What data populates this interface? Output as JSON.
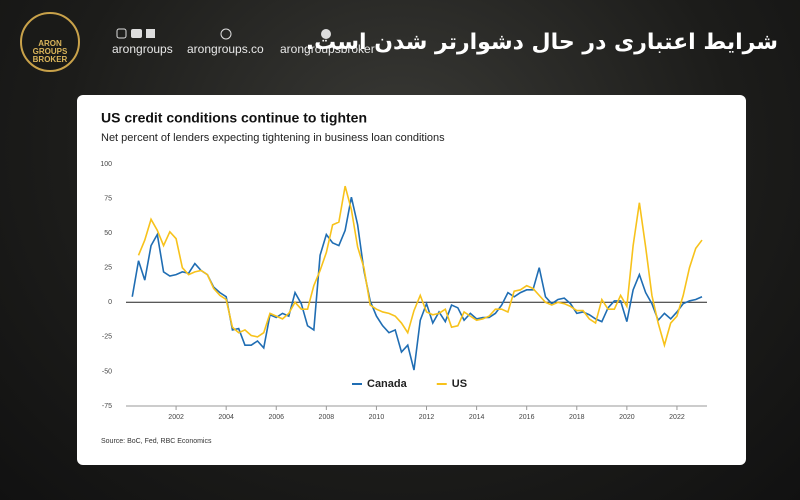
{
  "header": {
    "logo": "ARON GROUPS BROKER",
    "social": [
      "arongroups",
      "arongroups.co",
      "arongroupsbroker"
    ],
    "title": "شرایط اعتباری در حال دشوارتر شدن است."
  },
  "chart_data": {
    "type": "line",
    "title": "US credit conditions continue to tighten",
    "subtitle": "Net percent of lenders expecting tightening in business loan conditions",
    "source": "Source: BoC, Fed, RBC Economics",
    "x": [
      2000.25,
      2000.5,
      2000.75,
      2001,
      2001.25,
      2001.5,
      2001.75,
      2002,
      2002.25,
      2002.5,
      2002.75,
      2003,
      2003.25,
      2003.5,
      2003.75,
      2004,
      2004.25,
      2004.5,
      2004.75,
      2005,
      2005.25,
      2005.5,
      2005.75,
      2006,
      2006.25,
      2006.5,
      2006.75,
      2007,
      2007.25,
      2007.5,
      2007.75,
      2008,
      2008.25,
      2008.5,
      2008.75,
      2009,
      2009.25,
      2009.5,
      2009.75,
      2010,
      2010.25,
      2010.5,
      2010.75,
      2011,
      2011.25,
      2011.5,
      2011.75,
      2012,
      2012.25,
      2012.5,
      2012.75,
      2013,
      2013.25,
      2013.5,
      2013.75,
      2014,
      2014.25,
      2014.5,
      2014.75,
      2015,
      2015.25,
      2015.5,
      2015.75,
      2016,
      2016.25,
      2016.5,
      2016.75,
      2017,
      2017.25,
      2017.5,
      2017.75,
      2018,
      2018.25,
      2018.5,
      2018.75,
      2019,
      2019.25,
      2019.5,
      2019.75,
      2020,
      2020.25,
      2020.5,
      2020.75,
      2021,
      2021.25,
      2021.5,
      2021.75,
      2022,
      2022.25,
      2022.5,
      2022.75,
      2023
    ],
    "series": [
      {
        "name": "Canada",
        "color": "#1f6db3",
        "values": [
          4,
          30,
          16,
          41,
          49,
          22,
          19,
          20,
          22,
          21,
          28,
          23,
          20,
          11,
          7,
          4,
          -20,
          -19,
          -31,
          -31,
          -28,
          -33,
          -9,
          -11,
          -8,
          -10,
          7,
          -1,
          -17,
          -20,
          34,
          49,
          43,
          41,
          52,
          76,
          56,
          23,
          1,
          -10,
          -17,
          -22,
          -20,
          -36,
          -31,
          -49,
          -13,
          -1,
          -15,
          -7,
          -14,
          -2,
          -4,
          -13,
          -8,
          -12,
          -11,
          -11,
          -8,
          -2,
          7,
          4,
          7,
          9,
          9,
          25,
          4,
          -1,
          2,
          3,
          -1,
          -8,
          -7,
          -9,
          -12,
          -14,
          -4,
          1,
          1,
          -14,
          9,
          20,
          7,
          -1,
          -13,
          -8,
          -12,
          -7,
          -1,
          1,
          2,
          4
        ]
      },
      {
        "name": "US",
        "color": "#f7c21b",
        "values": [
          null,
          34,
          45,
          60,
          52,
          41,
          51,
          46,
          25,
          20,
          22,
          23,
          20,
          10,
          5,
          2,
          -18,
          -22,
          -20,
          -24,
          -25,
          -22,
          -8,
          -10,
          -12,
          -8,
          0,
          -5,
          -5,
          12,
          23,
          36,
          56,
          58,
          84,
          67,
          40,
          25,
          -2,
          -5,
          -7,
          -8,
          -10,
          -15,
          -22,
          -6,
          5,
          -7,
          -9,
          -8,
          -5,
          -18,
          -17,
          -7,
          -10,
          -13,
          -12,
          -10,
          -5,
          -5,
          -7,
          8,
          9,
          12,
          10,
          5,
          0,
          -2,
          0,
          -1,
          -3,
          -6,
          -6,
          -12,
          -15,
          2,
          -5,
          -5,
          5,
          -3,
          41,
          72,
          40,
          5,
          -15,
          -31,
          -15,
          -10,
          5,
          25,
          39,
          45
        ]
      }
    ],
    "xlim": [
      2000,
      2023.2
    ],
    "xticks": [
      2002,
      2004,
      2006,
      2008,
      2010,
      2012,
      2014,
      2016,
      2018,
      2020,
      2022
    ],
    "ylim": [
      -75,
      100
    ],
    "yticks": [
      100,
      75,
      50,
      25,
      0,
      -25,
      -50,
      -75
    ],
    "zero_line": true,
    "grid": false,
    "legend": "bottom"
  }
}
